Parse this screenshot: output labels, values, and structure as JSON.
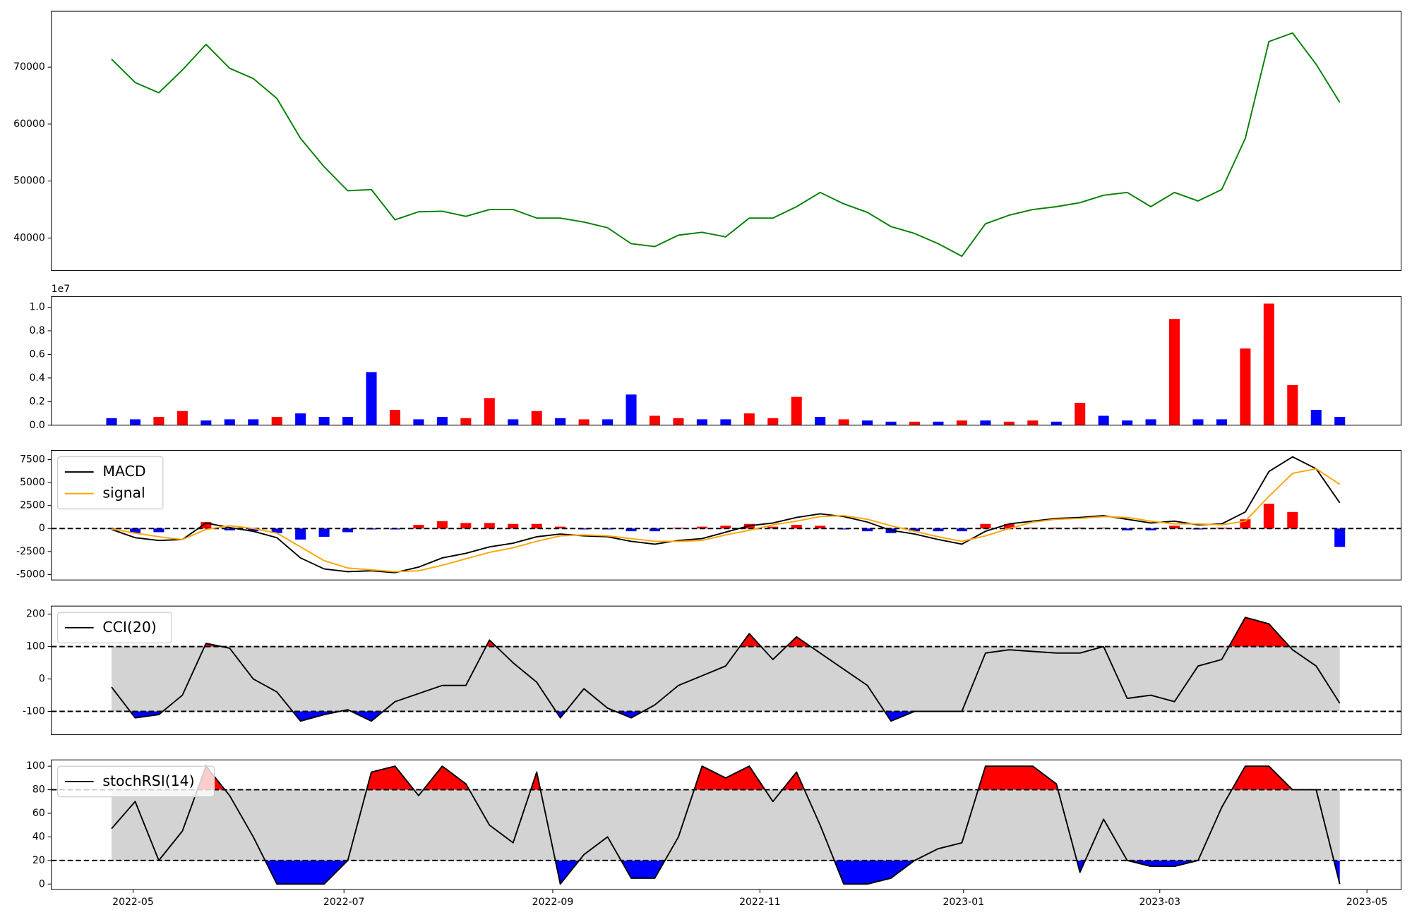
{
  "chart_data": [
    {
      "type": "line",
      "series": [
        {
          "color": "green",
          "values": [
            71400,
            67300,
            65500,
            69500,
            74000,
            69800,
            68000,
            64500,
            57500,
            52500,
            48300,
            48500,
            43200,
            44600,
            44700,
            43800,
            45000,
            45000,
            43500,
            43500,
            42800,
            41800,
            39000,
            38500,
            40500,
            41000,
            40200,
            43500,
            43500,
            45500,
            48000,
            46000,
            44500,
            42000,
            40800,
            39000,
            36800,
            42500,
            44000,
            45000,
            45500,
            46200,
            47500,
            48000,
            45500,
            48000,
            46500,
            48500,
            57500,
            74500,
            76000,
            70500,
            63800
          ]
        }
      ],
      "xlim": [
        -2.55,
        54.6
      ],
      "ylim": [
        34300,
        79800
      ],
      "yticks": [
        40000,
        50000,
        60000,
        70000
      ]
    },
    {
      "type": "bar",
      "values": [
        600000,
        500000,
        700000,
        1200000,
        400000,
        500000,
        500000,
        700000,
        1000000,
        700000,
        700000,
        4500000,
        1300000,
        500000,
        700000,
        600000,
        2300000,
        500000,
        1200000,
        600000,
        500000,
        500000,
        2600000,
        800000,
        600000,
        500000,
        500000,
        1000000,
        600000,
        2400000,
        700000,
        500000,
        400000,
        300000,
        300000,
        300000,
        400000,
        400000,
        300000,
        400000,
        300000,
        1900000,
        800000,
        400000,
        500000,
        9000000,
        500000,
        500000,
        6500000,
        10300000,
        3400000,
        1300000,
        700000
      ],
      "colors": [
        "blue",
        "blue",
        "red",
        "red",
        "blue",
        "blue",
        "blue",
        "red",
        "blue",
        "blue",
        "blue",
        "blue",
        "red",
        "blue",
        "blue",
        "red",
        "red",
        "blue",
        "red",
        "blue",
        "red",
        "blue",
        "blue",
        "red",
        "red",
        "blue",
        "blue",
        "red",
        "red",
        "red",
        "blue",
        "red",
        "blue",
        "blue",
        "red",
        "blue",
        "red",
        "blue",
        "red",
        "red",
        "blue",
        "red",
        "blue",
        "blue",
        "blue",
        "red",
        "blue",
        "blue",
        "red",
        "red",
        "red",
        "blue",
        "blue"
      ],
      "xlim": [
        -2.55,
        54.6
      ],
      "ylim": [
        0,
        10900000
      ],
      "yticks": [
        {
          "value": 0,
          "label": "0.0"
        },
        {
          "value": 2000000,
          "label": "0.2"
        },
        {
          "value": 4000000,
          "label": "0.4"
        },
        {
          "value": 6000000,
          "label": "0.6"
        },
        {
          "value": 8000000,
          "label": "0.8"
        },
        {
          "value": 10000000,
          "label": "1.0"
        }
      ],
      "offset_text": "1e7"
    },
    {
      "type": "macd",
      "series": [
        {
          "name": "MACD",
          "color": "black",
          "values": [
            -100,
            -1000,
            -1300,
            -1200,
            600,
            100,
            -300,
            -1000,
            -3200,
            -4400,
            -4700,
            -4600,
            -4800,
            -4200,
            -3200,
            -2700,
            -2000,
            -1600,
            -900,
            -600,
            -800,
            -900,
            -1400,
            -1700,
            -1300,
            -1100,
            -400,
            300,
            600,
            1200,
            1600,
            1300,
            700,
            -200,
            -600,
            -1200,
            -1700,
            -300,
            500,
            800,
            1100,
            1200,
            1400,
            1000,
            600,
            800,
            400,
            500,
            1800,
            6200,
            7800,
            6500,
            2800
          ]
        },
        {
          "name": "signal",
          "color": "orange",
          "values": [
            -50,
            -500,
            -900,
            -1200,
            -100,
            300,
            0,
            -500,
            -2000,
            -3500,
            -4300,
            -4500,
            -4700,
            -4600,
            -4000,
            -3300,
            -2600,
            -2100,
            -1400,
            -800,
            -700,
            -800,
            -1100,
            -1400,
            -1400,
            -1300,
            -700,
            -200,
            400,
            800,
            1300,
            1400,
            1000,
            300,
            -300,
            -900,
            -1400,
            -800,
            0,
            700,
            1000,
            1100,
            1300,
            1200,
            800,
            500,
            500,
            400,
            800,
            3500,
            6000,
            6500,
            4800
          ]
        }
      ],
      "histogram": {
        "values": [
          -50,
          -500,
          -400,
          0,
          700,
          -200,
          -300,
          -500,
          -1200,
          -900,
          -400,
          -100,
          -100,
          400,
          800,
          600,
          600,
          500,
          500,
          200,
          -100,
          -100,
          -300,
          -300,
          100,
          200,
          300,
          500,
          200,
          400,
          300,
          -100,
          -300,
          -500,
          -300,
          -300,
          -300,
          500,
          500,
          100,
          100,
          100,
          100,
          -200,
          -200,
          300,
          -100,
          100,
          1000,
          2700,
          1800,
          0,
          -2000
        ],
        "pos_color": "red",
        "neg_color": "blue"
      },
      "hline": 0,
      "legend": "upper left",
      "xlim": [
        -2.55,
        54.6
      ],
      "ylim": [
        -5600,
        8500
      ],
      "yticks": [
        -5000,
        -2500,
        0,
        2500,
        5000,
        7500
      ]
    },
    {
      "type": "oscillator",
      "series": [
        {
          "name": "CCI(20)",
          "color": "black",
          "values": [
            -25,
            -120,
            -110,
            -50,
            110,
            95,
            0,
            -40,
            -130,
            -110,
            -95,
            -130,
            -70,
            -45,
            -20,
            -20,
            120,
            50,
            -10,
            -120,
            -30,
            -90,
            -120,
            -80,
            -20,
            10,
            40,
            140,
            60,
            130,
            80,
            30,
            -20,
            -130,
            -100,
            -100,
            -100,
            80,
            90,
            85,
            80,
            80,
            100,
            -60,
            -50,
            -70,
            40,
            60,
            190,
            170,
            90,
            40,
            -75
          ]
        }
      ],
      "upper": 100,
      "lower": -100,
      "band_color": "lightgray",
      "upper_color": "red",
      "lower_color": "blue",
      "legend": "upper left",
      "xlim": [
        -2.55,
        54.6
      ],
      "ylim": [
        -172,
        225
      ],
      "yticks": [
        -100,
        0,
        100,
        200
      ]
    },
    {
      "type": "oscillator",
      "series": [
        {
          "name": "stochRSI(14)",
          "color": "black",
          "values": [
            47,
            70,
            20,
            45,
            100,
            75,
            40,
            0,
            0,
            0,
            20,
            95,
            100,
            75,
            100,
            85,
            50,
            35,
            95,
            0,
            25,
            40,
            5,
            5,
            40,
            100,
            90,
            100,
            70,
            95,
            50,
            0,
            0,
            5,
            20,
            30,
            35,
            100,
            100,
            100,
            85,
            10,
            55,
            20,
            15,
            15,
            20,
            65,
            100,
            100,
            80,
            80,
            0
          ]
        }
      ],
      "upper": 80,
      "lower": 20,
      "band_color": "lightgray",
      "upper_color": "red",
      "lower_color": "blue",
      "legend": "upper left",
      "xlim": [
        -2.55,
        54.6
      ],
      "ylim": [
        -4.6,
        105.3
      ],
      "yticks": [
        0,
        20,
        40,
        60,
        80,
        100
      ],
      "xticks": [
        {
          "value": 0.91,
          "label": "2022-05"
        },
        {
          "value": 9.84,
          "label": "2022-07"
        },
        {
          "value": 18.68,
          "label": "2022-09"
        },
        {
          "value": 27.45,
          "label": "2022-11"
        },
        {
          "value": 36.07,
          "label": "2023-01"
        },
        {
          "value": 44.38,
          "label": "2023-03"
        },
        {
          "value": 53.15,
          "label": "2023-05"
        }
      ]
    }
  ]
}
